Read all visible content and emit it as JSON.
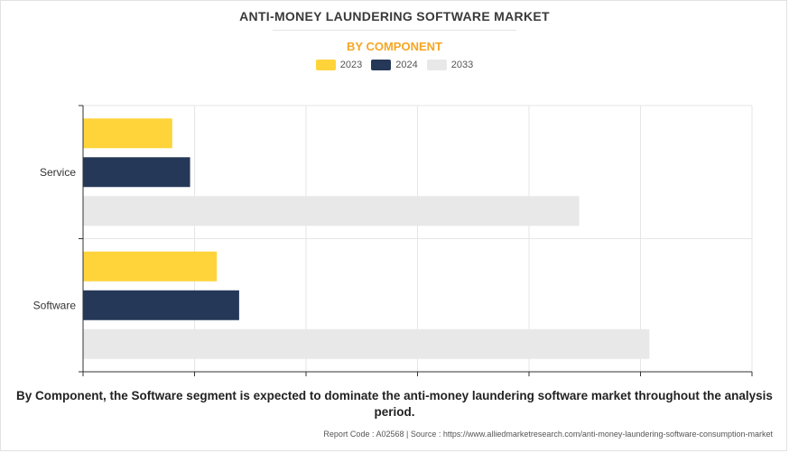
{
  "header": {
    "title": "ANTI-MONEY LAUNDERING SOFTWARE MARKET",
    "subtitle": "BY COMPONENT"
  },
  "legend": [
    {
      "label": "2023",
      "color": "#ffd43b"
    },
    {
      "label": "2024",
      "color": "#253858"
    },
    {
      "label": "2033",
      "color": "#e8e8e8"
    }
  ],
  "chart_data": {
    "type": "bar",
    "orientation": "horizontal",
    "categories": [
      "Service",
      "Software"
    ],
    "series": [
      {
        "name": "2023",
        "color": "#ffd43b",
        "values": [
          0.8,
          1.2
        ]
      },
      {
        "name": "2024",
        "color": "#253858",
        "values": [
          0.96,
          1.4
        ]
      },
      {
        "name": "2033",
        "color": "#e8e8e8",
        "values": [
          4.45,
          5.08
        ]
      }
    ],
    "xlim": [
      0,
      6
    ],
    "grid": true,
    "legend_position": "top-center",
    "tick_labels_visible": false
  },
  "caption": "By Component, the Software segment is expected to dominate the anti-money laundering software market throughout the analysis period.",
  "footer": "Report Code : A02568  |  Source : https://www.alliedmarketresearch.com/anti-money-laundering-software-consumption-market"
}
